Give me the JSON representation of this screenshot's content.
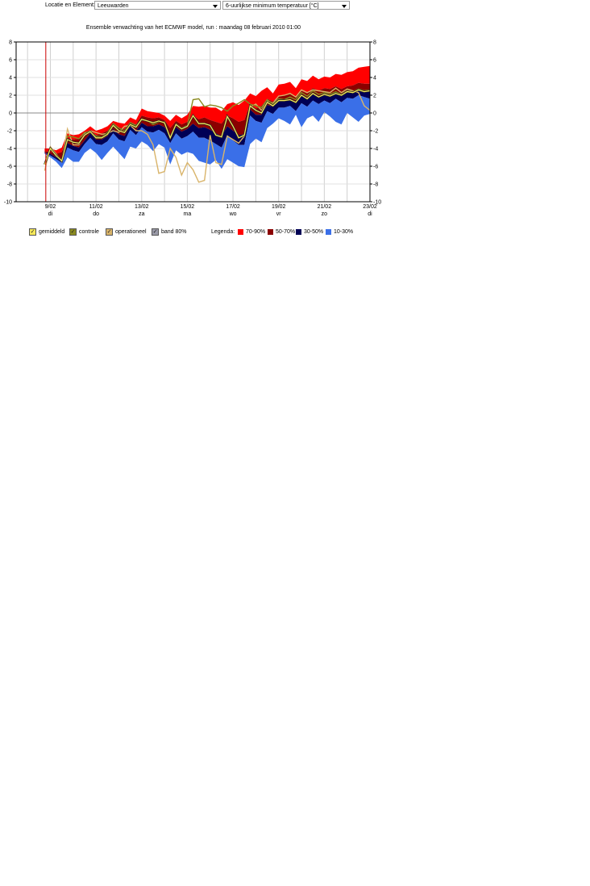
{
  "topbar": {
    "label": "Locatie en Element:",
    "location": "Leeuwarden",
    "element": "6-uurlijkse minimum temperatuur [°C]"
  },
  "legend": {
    "toggles": [
      {
        "label": "gemiddeld",
        "color": "#f5e85a"
      },
      {
        "label": "controle",
        "color": "#8a8a20"
      },
      {
        "label": "operationeel",
        "color": "#d9b46a"
      },
      {
        "label": "band 80%",
        "color": "#9a9aa8"
      }
    ],
    "title": "Legenda:",
    "bands": [
      {
        "label": "70-90%",
        "color": "#ff0000"
      },
      {
        "label": "50-70%",
        "color": "#8b0000"
      },
      {
        "label": "30-50%",
        "color": "#000055"
      },
      {
        "label": "10-30%",
        "color": "#3a6fe8"
      }
    ]
  },
  "chart_data": {
    "type": "area",
    "title": "Ensemble verwachting van het ECMWF model, run : maandag 08 februari 2010 01:00",
    "ylim": [
      -10,
      8
    ],
    "yticks": [
      8,
      6,
      4,
      2,
      0,
      -2,
      -4,
      -6,
      -8,
      -10
    ],
    "xlim": [
      -1.5,
      14.0
    ],
    "xticks": [
      {
        "x": 0,
        "date": "9/02",
        "day": "di"
      },
      {
        "x": 2,
        "date": "11/02",
        "day": "do"
      },
      {
        "x": 4,
        "date": "13/02",
        "day": "za"
      },
      {
        "x": 6,
        "date": "15/02",
        "day": "ma"
      },
      {
        "x": 8,
        "date": "17/02",
        "day": "wo"
      },
      {
        "x": 10,
        "date": "19/02",
        "day": "vr"
      },
      {
        "x": 12,
        "date": "21/02",
        "day": "zo"
      },
      {
        "x": 14,
        "date": "23/02",
        "day": "di"
      }
    ],
    "grid": true,
    "run_marker_x": -0.2,
    "x": [
      -0.25,
      0,
      0.25,
      0.5,
      0.75,
      1,
      1.25,
      1.5,
      1.75,
      2,
      2.25,
      2.5,
      2.75,
      3,
      3.25,
      3.5,
      3.75,
      4,
      4.25,
      4.5,
      4.75,
      5,
      5.25,
      5.5,
      5.75,
      6,
      6.25,
      6.5,
      6.75,
      7,
      7.25,
      7.5,
      7.75,
      8,
      8.25,
      8.5,
      8.75,
      9,
      9.25,
      9.5,
      9.75,
      10,
      10.25,
      10.5,
      10.75,
      11,
      11.25,
      11.5,
      11.75,
      12,
      12.25,
      12.5,
      12.75,
      13,
      13.25,
      13.5,
      13.75,
      14
    ],
    "series": [
      {
        "name": "90%",
        "values": [
          -4.0,
          -4.0,
          -4.2,
          -3.9,
          -2.3,
          -2.5,
          -2.4,
          -2.0,
          -1.5,
          -2.0,
          -1.8,
          -1.5,
          -0.9,
          -1.1,
          -1.2,
          -0.5,
          -0.8,
          0.5,
          0.2,
          0.1,
          0.0,
          -0.3,
          -0.9,
          -0.2,
          -0.6,
          -0.2,
          0.8,
          0.7,
          0.8,
          0.6,
          0.6,
          0.2,
          1.0,
          1.2,
          0.9,
          1.4,
          2.2,
          1.9,
          2.5,
          2.9,
          2.2,
          3.2,
          3.3,
          3.5,
          2.8,
          3.8,
          3.6,
          4.2,
          3.8,
          4.1,
          4.0,
          4.4,
          4.3,
          4.6,
          4.7,
          5.1,
          5.2,
          5.3
        ]
      },
      {
        "name": "70%",
        "values": [
          -4.3,
          -4.4,
          -4.6,
          -4.4,
          -2.8,
          -3.0,
          -2.9,
          -2.5,
          -2.0,
          -2.5,
          -2.3,
          -2.0,
          -1.4,
          -1.6,
          -1.8,
          -1.0,
          -1.3,
          -0.3,
          -0.5,
          -0.6,
          -0.5,
          -0.8,
          -1.7,
          -0.9,
          -1.3,
          -1.0,
          -0.3,
          -0.7,
          -0.5,
          -0.8,
          -1.0,
          -1.2,
          -0.3,
          -0.6,
          -1.0,
          -0.8,
          1.0,
          0.5,
          0.8,
          1.6,
          1.3,
          1.9,
          2.0,
          2.2,
          1.8,
          2.5,
          2.2,
          2.8,
          2.5,
          2.8,
          2.7,
          3.0,
          2.7,
          3.0,
          3.1,
          3.4,
          3.3,
          3.3
        ]
      },
      {
        "name": "50%",
        "values": [
          -4.4,
          -4.6,
          -5.0,
          -5.2,
          -3.4,
          -3.7,
          -3.9,
          -3.1,
          -2.3,
          -3.0,
          -3.0,
          -2.6,
          -1.8,
          -2.4,
          -2.6,
          -1.4,
          -2.0,
          -1.1,
          -1.5,
          -1.5,
          -1.3,
          -1.6,
          -2.6,
          -1.6,
          -2.1,
          -1.8,
          -1.2,
          -1.7,
          -1.6,
          -1.9,
          -2.3,
          -2.6,
          -1.5,
          -2.0,
          -2.5,
          -2.4,
          0.4,
          -0.2,
          -0.2,
          0.9,
          0.7,
          1.3,
          1.4,
          1.5,
          1.1,
          1.9,
          1.5,
          2.1,
          1.8,
          2.2,
          2.0,
          2.3,
          2.0,
          2.4,
          2.4,
          2.7,
          2.5,
          2.4
        ]
      },
      {
        "name": "30%",
        "values": [
          -4.5,
          -4.8,
          -5.2,
          -5.6,
          -3.9,
          -4.2,
          -4.4,
          -3.5,
          -2.8,
          -3.5,
          -3.6,
          -3.2,
          -2.3,
          -3.0,
          -3.2,
          -1.9,
          -2.5,
          -1.6,
          -2.1,
          -2.2,
          -1.9,
          -2.3,
          -3.4,
          -2.3,
          -2.9,
          -2.6,
          -2.1,
          -2.8,
          -2.8,
          -3.1,
          -3.5,
          -3.9,
          -2.5,
          -3.1,
          -3.6,
          -3.6,
          -0.3,
          -0.9,
          -1.1,
          0.2,
          -0.1,
          0.6,
          0.6,
          0.8,
          0.2,
          1.1,
          0.7,
          1.4,
          1.0,
          1.4,
          1.1,
          1.6,
          1.2,
          1.7,
          1.6,
          2.0,
          1.8,
          1.6
        ]
      },
      {
        "name": "10%",
        "values": [
          -4.6,
          -5.0,
          -5.5,
          -6.2,
          -5.0,
          -5.5,
          -5.5,
          -4.5,
          -4.0,
          -4.5,
          -5.3,
          -4.5,
          -3.8,
          -4.5,
          -5.2,
          -3.8,
          -4.0,
          -3.2,
          -3.6,
          -4.3,
          -3.5,
          -3.9,
          -5.8,
          -4.2,
          -4.7,
          -4.4,
          -4.6,
          -5.4,
          -5.6,
          -5.8,
          -5.3,
          -6.3,
          -5.2,
          -5.6,
          -6.0,
          -6.1,
          -3.5,
          -2.9,
          -3.3,
          -1.7,
          -1.2,
          -0.6,
          -0.9,
          -1.3,
          -0.2,
          -1.6,
          -0.6,
          -0.3,
          -1.0,
          0.1,
          -0.4,
          -1.0,
          -1.3,
          0.0,
          -0.5,
          -1.0,
          -0.3,
          -0.1
        ]
      },
      {
        "name": "gemiddeld",
        "values": [
          -5.8,
          -4.0,
          -4.8,
          -5.4,
          -3.0,
          -3.3,
          -3.4,
          -2.5,
          -2.1,
          -2.8,
          -2.8,
          -2.4,
          -1.4,
          -2.0,
          -2.2,
          -1.3,
          -1.6,
          -0.7,
          -0.9,
          -1.1,
          -0.9,
          -1.1,
          -2.8,
          -1.3,
          -1.8,
          -1.5,
          -0.3,
          -1.2,
          -1.2,
          -1.4,
          -2.5,
          -2.7,
          -0.4,
          -1.5,
          -2.8,
          -2.5,
          0.8,
          0.3,
          0.0,
          1.2,
          0.8,
          1.4,
          1.4,
          1.5,
          1.2,
          2.0,
          1.6,
          2.2,
          1.8,
          2.1,
          1.9,
          2.2,
          2.0,
          2.4,
          2.3,
          2.6,
          2.4,
          2.5
        ]
      },
      {
        "name": "controle",
        "values": [
          -5.7,
          -4.0,
          -4.7,
          -5.3,
          -2.6,
          -2.7,
          -2.9,
          -2.2,
          -2.1,
          -2.6,
          -2.7,
          -2.2,
          -1.2,
          -1.7,
          -2.0,
          -1.1,
          -1.4,
          -0.8,
          -0.9,
          -1.3,
          -1.0,
          -1.0,
          -2.8,
          -1.2,
          -1.7,
          -1.4,
          1.5,
          1.6,
          0.7,
          0.9,
          0.8,
          0.6,
          0.2,
          0.8,
          1.1,
          1.5,
          1.0,
          0.8,
          0.6,
          1.5,
          1.0,
          1.6,
          1.5,
          1.8,
          1.5,
          2.3,
          1.9,
          2.5,
          2.1,
          2.3,
          2.1,
          2.4,
          2.1,
          2.5,
          2.4,
          2.7,
          2.5,
          2.6
        ]
      },
      {
        "name": "operationeel",
        "values": [
          -6.5,
          -3.8,
          -4.6,
          -5.5,
          -1.8,
          -3.6,
          -3.6,
          -2.3,
          -2.0,
          -2.2,
          -2.4,
          -2.3,
          -2.0,
          -2.2,
          -1.5,
          -1.4,
          -2.0,
          -2.0,
          -2.4,
          -3.6,
          -6.8,
          -6.6,
          -4.0,
          -5.0,
          -7.0,
          -5.6,
          -6.4,
          -7.8,
          -7.6,
          -2.5,
          -5.6,
          -5.8,
          -2.6,
          -3.0,
          -3.4,
          -2.6,
          0.7,
          1.0,
          0.3,
          1.4,
          1.1,
          1.9,
          2.0,
          2.2,
          1.8,
          2.6,
          2.3,
          2.6,
          2.5,
          2.4,
          2.3,
          2.8,
          2.3,
          2.7,
          2.5,
          2.3,
          0.8,
          0.3
        ]
      }
    ]
  }
}
